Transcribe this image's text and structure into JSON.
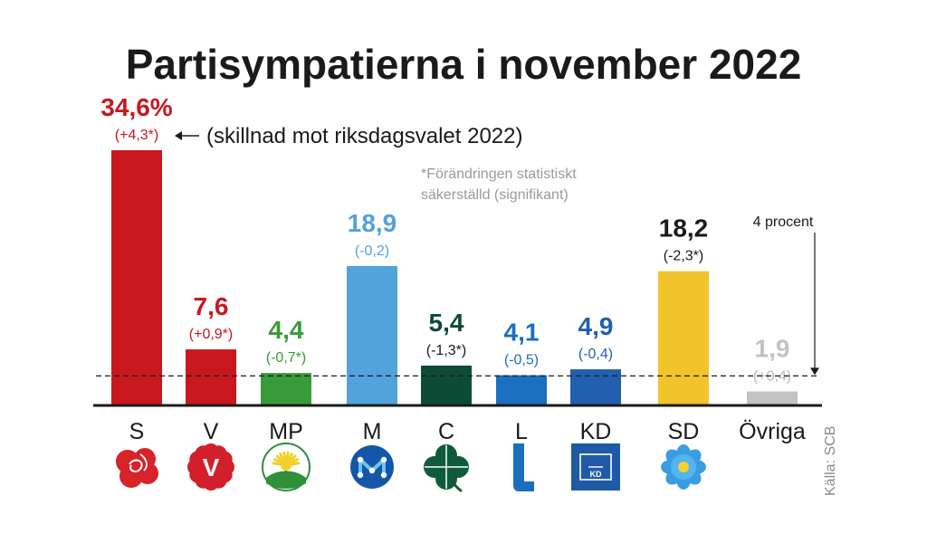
{
  "chart_data": {
    "type": "bar",
    "title": "Partisympatierna i november 2022",
    "categories": [
      "S",
      "V",
      "MP",
      "M",
      "C",
      "L",
      "KD",
      "SD",
      "Övriga"
    ],
    "values": [
      34.6,
      7.6,
      4.4,
      18.9,
      5.4,
      4.1,
      4.9,
      18.2,
      1.9
    ],
    "value_labels": [
      "34,6%",
      "7,6",
      "4,4",
      "18,9",
      "5,4",
      "4,1",
      "4,9",
      "18,2",
      "1,9"
    ],
    "change_labels": [
      "(+4,3*)",
      "(+0,9*)",
      "(-0,7*)",
      "(-0,2)",
      "(-1,3*)",
      "(-0,5)",
      "(-0,4)",
      "(-2,3*)",
      "(+0,4)"
    ],
    "colors": [
      "#c8181e",
      "#c8181e",
      "#3a9b3a",
      "#52a2dc",
      "#0e4b36",
      "#1a6fc0",
      "#225fae",
      "#f2c42b",
      "#c2c2c2"
    ],
    "value_label_colors": [
      "#c8181e",
      "#c8181e",
      "#3a9b3a",
      "#52a2dc",
      "#0e4b36",
      "#1a6fc0",
      "#225fae",
      "#1a1a1a",
      "#c2c2c2"
    ],
    "change_label_colors": [
      "#c8181e",
      "#c8181e",
      "#3a9b3a",
      "#52a2dc",
      "#1a1a1a",
      "#1a6fc0",
      "#225fae",
      "#1a1a1a",
      "#b8b8b8"
    ],
    "logo_icons": [
      "s-rose-icon",
      "v-carnation-icon",
      "mp-dandelion-icon",
      "m-logo-icon",
      "c-clover-icon",
      "l-logo-icon",
      "kd-logo-icon",
      "sd-hepatica-icon",
      ""
    ],
    "logo_lettering": [
      "",
      "V",
      "",
      "",
      "",
      "",
      "KD",
      "",
      ""
    ],
    "threshold": {
      "value": 4,
      "label": "4 procent"
    },
    "legend_note": "(skillnad mot riksdagsvalet 2022)",
    "footnote": [
      "*Förändringen statistiskt",
      "säkerställd (signifikant)"
    ],
    "source": "Källa: SCB",
    "ylim": [
      0,
      35
    ],
    "grid": false,
    "legend": "none"
  }
}
